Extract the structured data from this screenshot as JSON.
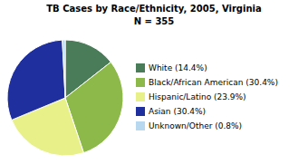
{
  "chart_data": {
    "type": "pie",
    "title": "TB Cases by Race/Ethnicity, 2005, Virginia",
    "subtitle": "N = 355",
    "categories": [
      "White (14.4%)",
      "Black/African American (30.4%)",
      "Hispanic/Latino (23.9%)",
      "Asian (30.4%)",
      "Unknown/Other (0.8%)"
    ],
    "values": [
      14.4,
      30.4,
      23.9,
      30.4,
      0.8
    ],
    "colors": [
      "#4a7c59",
      "#8db84a",
      "#e8f08a",
      "#1f2f9e",
      "#b8d8f0"
    ],
    "legend": "right"
  }
}
